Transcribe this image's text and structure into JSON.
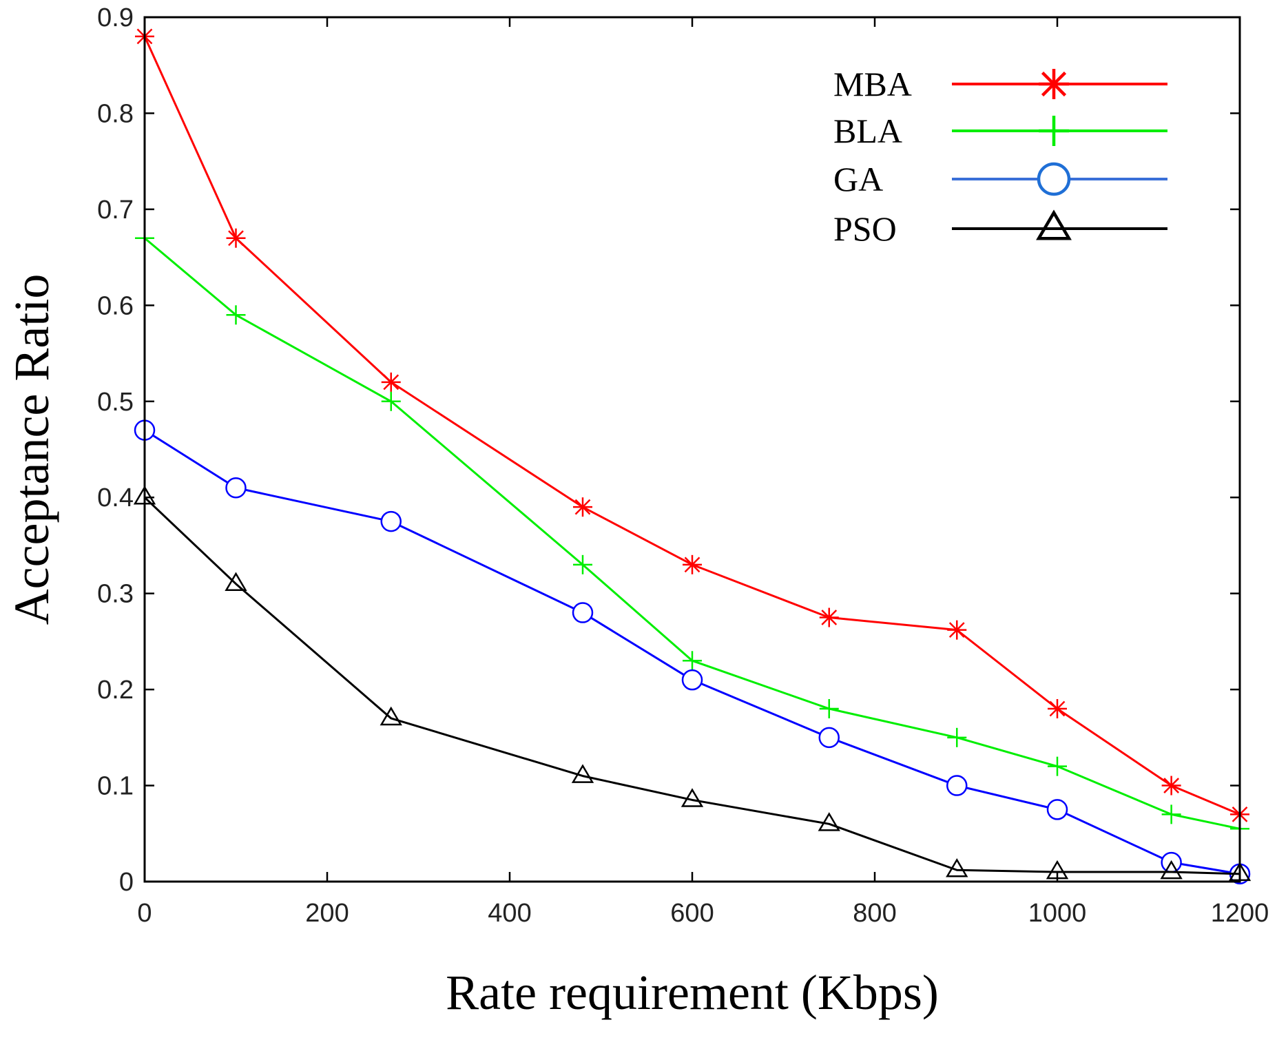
{
  "chart_data": {
    "type": "line",
    "title": "",
    "xlabel": "Rate requirement (Kbps)",
    "ylabel": "Acceptance Ratio",
    "xlim": [
      0,
      1200
    ],
    "ylim": [
      0,
      0.9
    ],
    "grid": false,
    "legend_position": "top-right",
    "xticks": [
      0,
      200,
      400,
      600,
      800,
      1000,
      1200
    ],
    "xtick_labels": [
      "0",
      "200",
      "400",
      "600",
      "800",
      "1000",
      "1200"
    ],
    "yticks": [
      0,
      0.1,
      0.2,
      0.3,
      0.4,
      0.5,
      0.6,
      0.7,
      0.8,
      0.9
    ],
    "ytick_labels": [
      "0",
      "0.1",
      "0.2",
      "0.3",
      "0.4",
      "0.5",
      "0.6",
      "0.7",
      "0.8",
      "0.9"
    ],
    "x": [
      0,
      100,
      270,
      480,
      600,
      750,
      890,
      1000,
      1125,
      1200
    ],
    "series": [
      {
        "name": "MBA",
        "color": "#ff0000",
        "marker": "asterisk",
        "values": [
          0.88,
          0.67,
          0.52,
          0.39,
          0.33,
          0.275,
          0.262,
          0.18,
          0.1,
          0.07
        ]
      },
      {
        "name": "BLA",
        "color": "#00ee00",
        "marker": "plus",
        "values": [
          0.67,
          0.59,
          0.5,
          0.33,
          0.23,
          0.18,
          0.15,
          0.12,
          0.07,
          0.055
        ]
      },
      {
        "name": "GA",
        "color": "#0000ff",
        "legend_color": "#3a6fd8",
        "legend_marker_color": "#1f6fd6",
        "marker": "circle",
        "values": [
          0.47,
          0.41,
          0.375,
          0.28,
          0.21,
          0.15,
          0.1,
          0.075,
          0.02,
          0.008
        ]
      },
      {
        "name": "PSO",
        "color": "#000000",
        "marker": "triangle",
        "values": [
          0.4,
          0.31,
          0.17,
          0.11,
          0.085,
          0.06,
          0.012,
          0.01,
          0.01,
          0.008
        ]
      }
    ]
  }
}
